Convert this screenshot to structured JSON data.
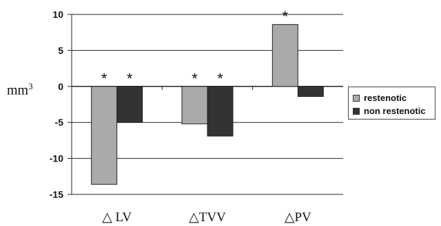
{
  "chart_data": {
    "type": "bar",
    "categories": [
      "△ LV",
      "△TVV",
      "△PV"
    ],
    "series": [
      {
        "name": "restenotic",
        "values": [
          -13.6,
          -5.2,
          8.6
        ],
        "color": "#aaaaaa"
      },
      {
        "name": "non restenotic",
        "values": [
          -5.0,
          -6.9,
          -1.4
        ],
        "color": "#333333"
      }
    ],
    "ylabel": "mm",
    "ylabel_superscript": "3",
    "ylim": [
      -15,
      10
    ],
    "yticks": [
      -15,
      -10,
      -5,
      0,
      5,
      10
    ],
    "grid": true,
    "legend_position": "right",
    "annotations": [
      {
        "category_index": 0,
        "series_index": 0,
        "text": "*"
      },
      {
        "category_index": 0,
        "series_index": 1,
        "text": "*"
      },
      {
        "category_index": 1,
        "series_index": 0,
        "text": "*"
      },
      {
        "category_index": 1,
        "series_index": 1,
        "text": "*"
      },
      {
        "category_index": 2,
        "series_index": 0,
        "text": "*"
      }
    ]
  }
}
